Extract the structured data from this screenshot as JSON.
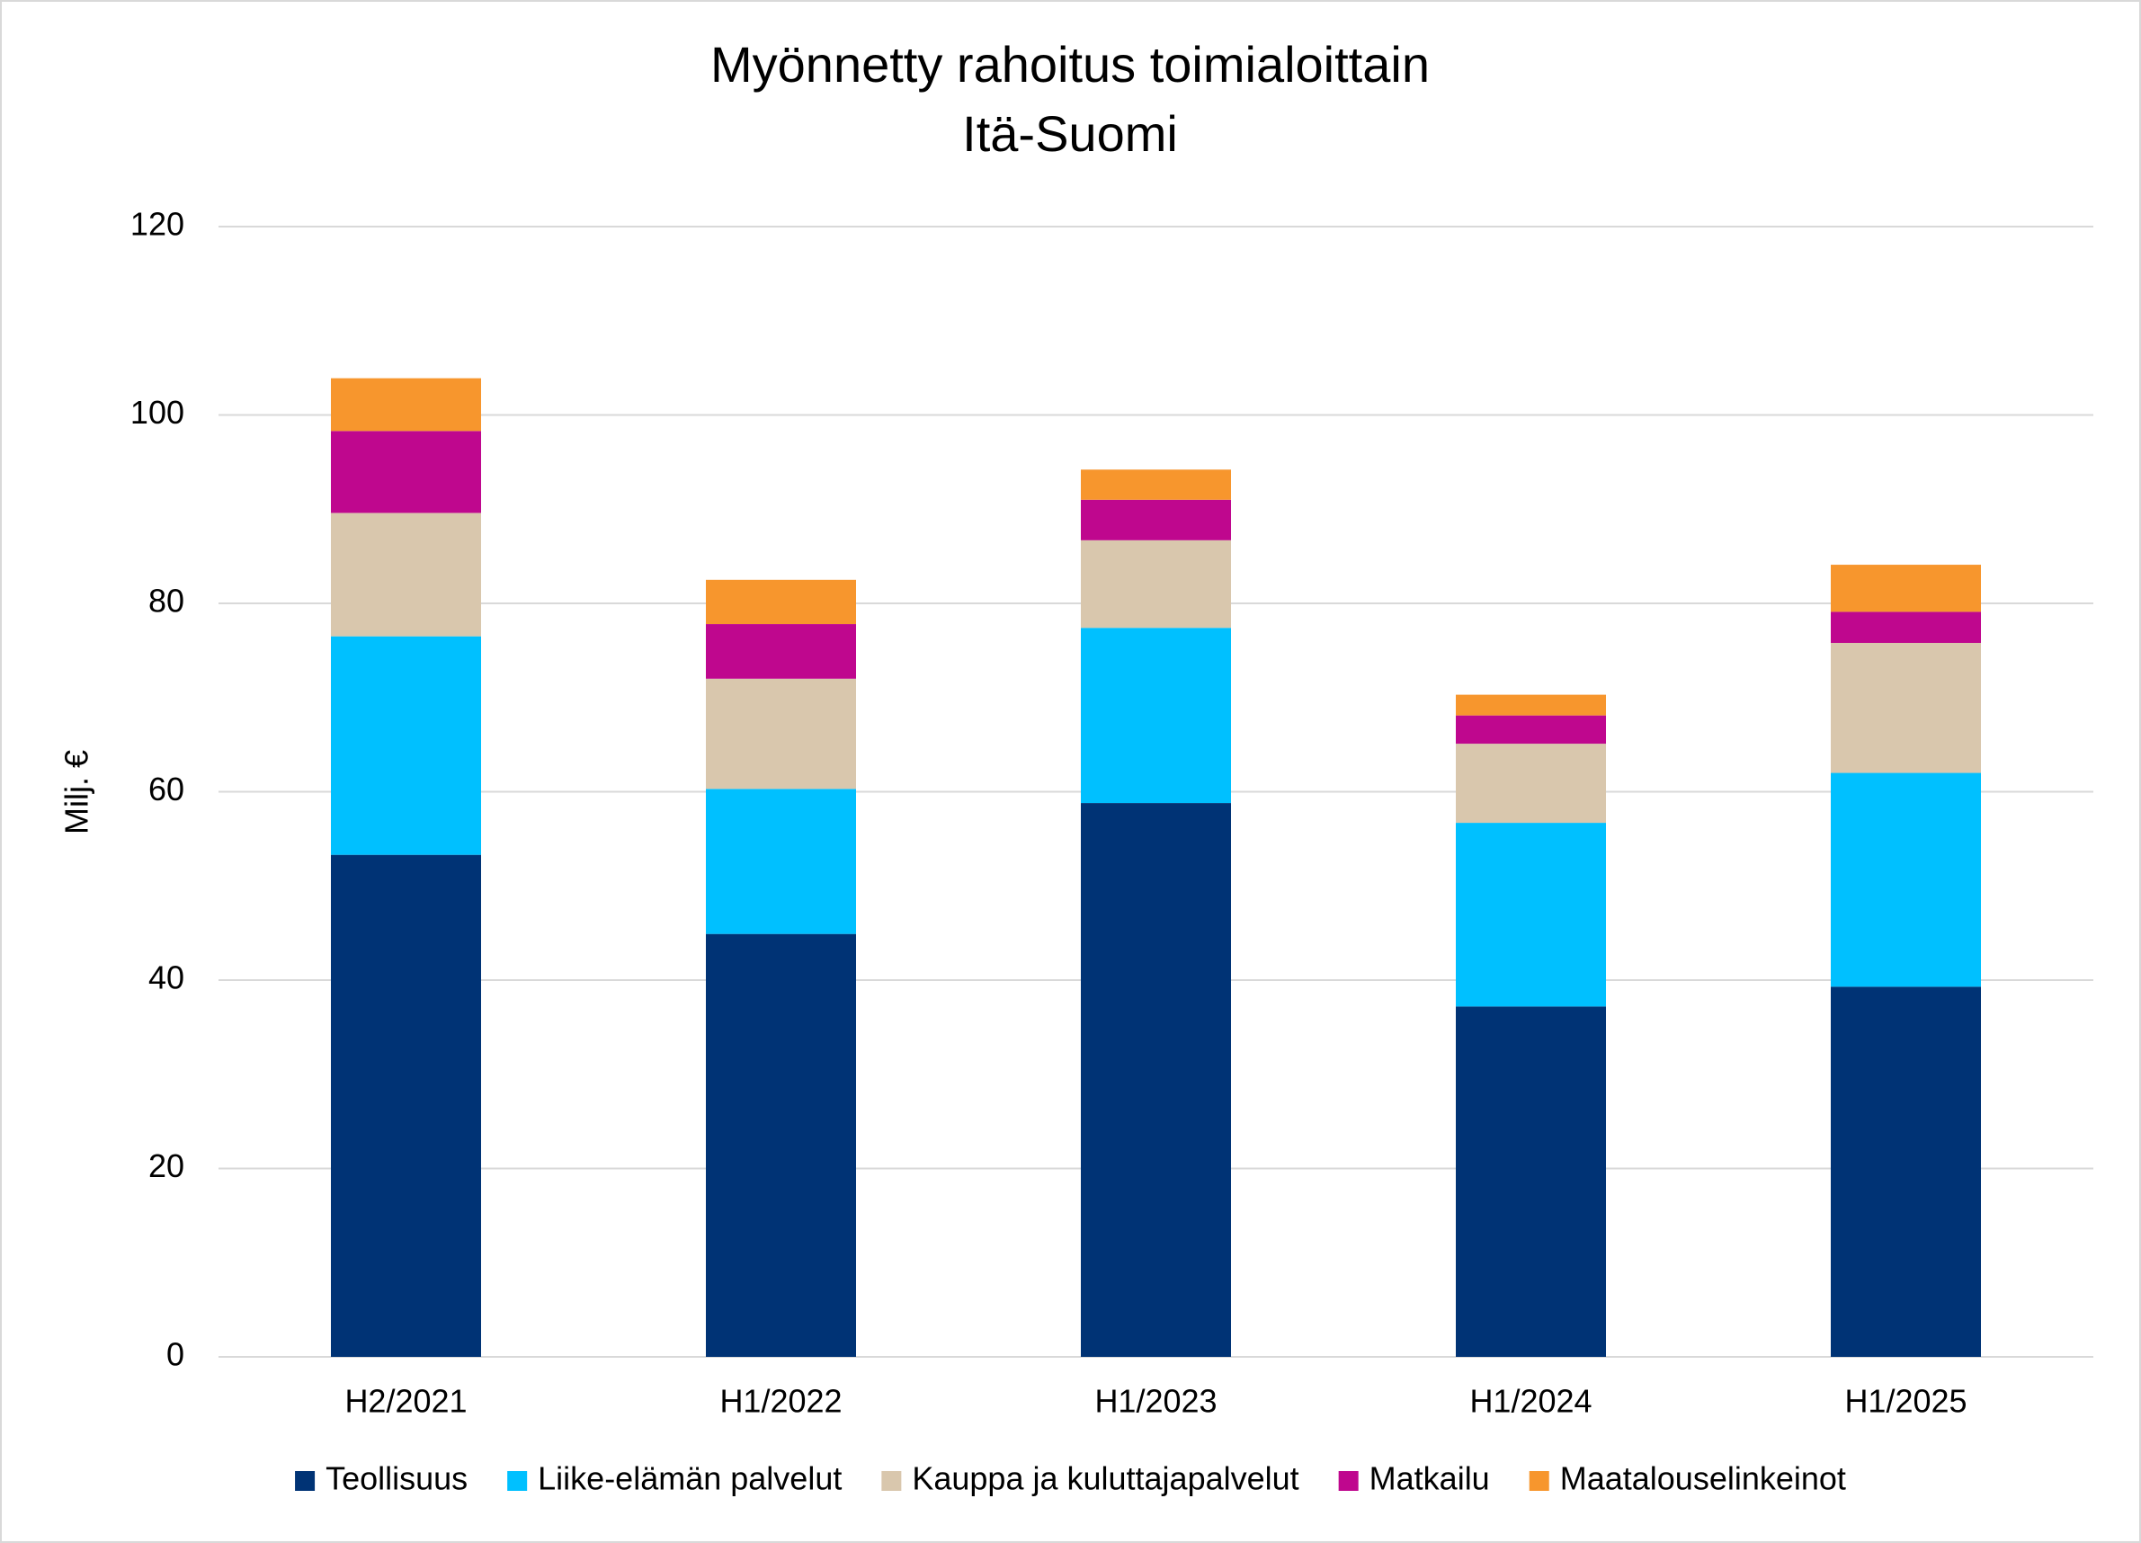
{
  "chart_data": {
    "type": "stacked_bar",
    "title": "Myönnetty rahoitus toimialoittain",
    "subtitle": "Itä-Suomi",
    "y_label": "Milj. €",
    "categories": [
      "H2/2021",
      "H1/2022",
      "H1/2023",
      "H1/2024",
      "H1/2025"
    ],
    "series": [
      {
        "name": "Teollisuus",
        "color": "#003375",
        "values": [
          53.3,
          44.9,
          58.8,
          37.2,
          39.3
        ]
      },
      {
        "name": "Liike-elämän palvelut",
        "color": "#00c0ff",
        "values": [
          23.2,
          15.4,
          18.6,
          19.5,
          22.7
        ]
      },
      {
        "name": "Kauppa ja kuluttajapalvelut",
        "color": "#d9c7ad",
        "values": [
          13.1,
          11.7,
          9.3,
          8.4,
          13.8
        ]
      },
      {
        "name": "Matkailu",
        "color": "#bf078e",
        "values": [
          8.7,
          5.8,
          4.3,
          3.0,
          3.3
        ]
      },
      {
        "name": "Maatalouselinkeinot",
        "color": "#f7962d",
        "values": [
          5.6,
          4.7,
          3.2,
          2.2,
          5.0
        ]
      }
    ],
    "ylim": [
      0,
      120
    ],
    "yticks": [
      0,
      20,
      40,
      60,
      80,
      100,
      120
    ],
    "grid": true,
    "legend": "bottom"
  }
}
